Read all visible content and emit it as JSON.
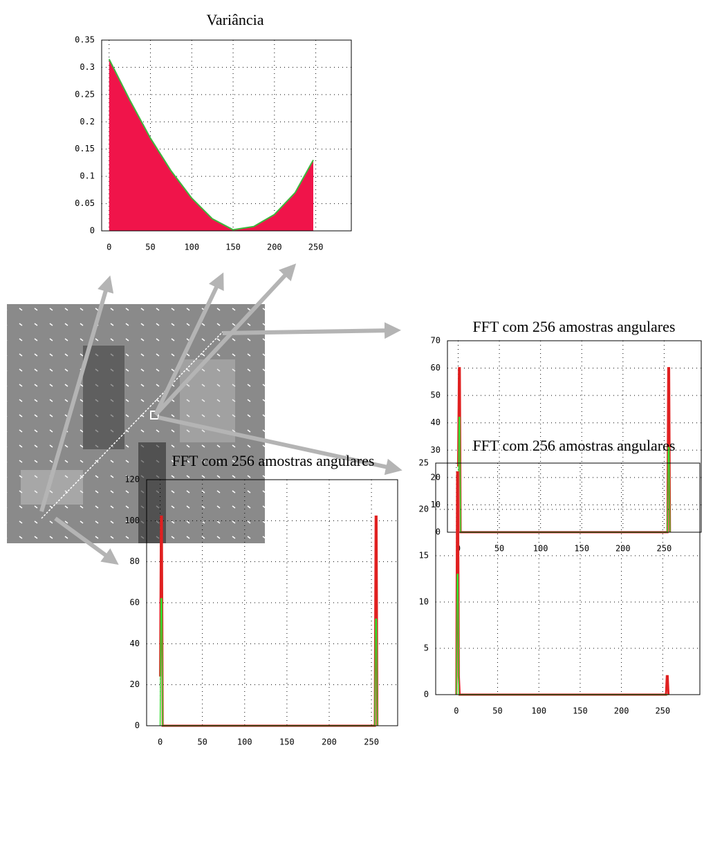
{
  "chart_data": [
    {
      "type": "area",
      "title": "Variância",
      "x": [
        0,
        25,
        50,
        75,
        100,
        125,
        150,
        175,
        200,
        225,
        247
      ],
      "values": [
        0.315,
        0.24,
        0.17,
        0.11,
        0.06,
        0.022,
        0.002,
        0.008,
        0.03,
        0.07,
        0.13
      ],
      "color": "#f0144a",
      "line_color": "#3cb83c",
      "xlim": [
        -9,
        293
      ],
      "xticks": [
        0,
        50,
        100,
        150,
        200,
        250
      ],
      "ylim": [
        0,
        0.35
      ],
      "yticks": [
        0,
        0.05,
        0.1,
        0.15,
        0.2,
        0.25,
        0.3,
        0.35
      ],
      "grid": true
    },
    {
      "type": "line",
      "title": "FFT com 256 amostras angulares",
      "x": [
        0,
        1,
        2,
        3,
        4,
        253,
        254,
        255,
        256,
        257
      ],
      "series": [
        {
          "color": "#e02020",
          "values": [
            24,
            60,
            60,
            0,
            0,
            0,
            0,
            60,
            60,
            0
          ]
        },
        {
          "color": "#30e030",
          "values": [
            0,
            42,
            42,
            0,
            0,
            0,
            0,
            31,
            31,
            0
          ]
        }
      ],
      "xlim": [
        -13,
        295
      ],
      "xticks": [
        0,
        50,
        100,
        150,
        200,
        250
      ],
      "ylim": [
        0,
        70
      ],
      "yticks": [
        0,
        10,
        20,
        30,
        40,
        50,
        60,
        70
      ],
      "grid": true
    },
    {
      "type": "line",
      "title": "FFT com 256 amostras angulares",
      "x": [
        0,
        1,
        2,
        3,
        4,
        253,
        254,
        255,
        256,
        257
      ],
      "series": [
        {
          "color": "#e02020",
          "values": [
            0,
            24,
            24,
            2,
            0,
            0,
            0,
            2,
            2,
            0
          ]
        },
        {
          "color": "#30e030",
          "values": [
            0,
            13,
            13,
            0,
            0,
            0,
            0,
            0,
            0,
            0
          ]
        }
      ],
      "xlim": [
        -25,
        295
      ],
      "xticks": [
        0,
        50,
        100,
        150,
        200,
        250
      ],
      "ylim": [
        0,
        25
      ],
      "yticks": [
        0,
        5,
        10,
        15,
        20,
        25
      ],
      "grid": true
    },
    {
      "type": "line",
      "title": "FFT com 256 amostras angulares",
      "x": [
        0,
        1,
        2,
        3,
        4,
        253,
        254,
        255,
        256,
        257
      ],
      "series": [
        {
          "color": "#e02020",
          "values": [
            24,
            102,
            102,
            0,
            0,
            0,
            0,
            102,
            102,
            0
          ]
        },
        {
          "color": "#30e030",
          "values": [
            0,
            62,
            62,
            0,
            0,
            0,
            0,
            52,
            52,
            0
          ]
        }
      ],
      "xlim": [
        -16,
        281
      ],
      "xticks": [
        0,
        50,
        100,
        150,
        200,
        250
      ],
      "ylim": [
        0,
        120
      ],
      "yticks": [
        0,
        20,
        40,
        60,
        80,
        100,
        120
      ],
      "grid": true
    }
  ]
}
